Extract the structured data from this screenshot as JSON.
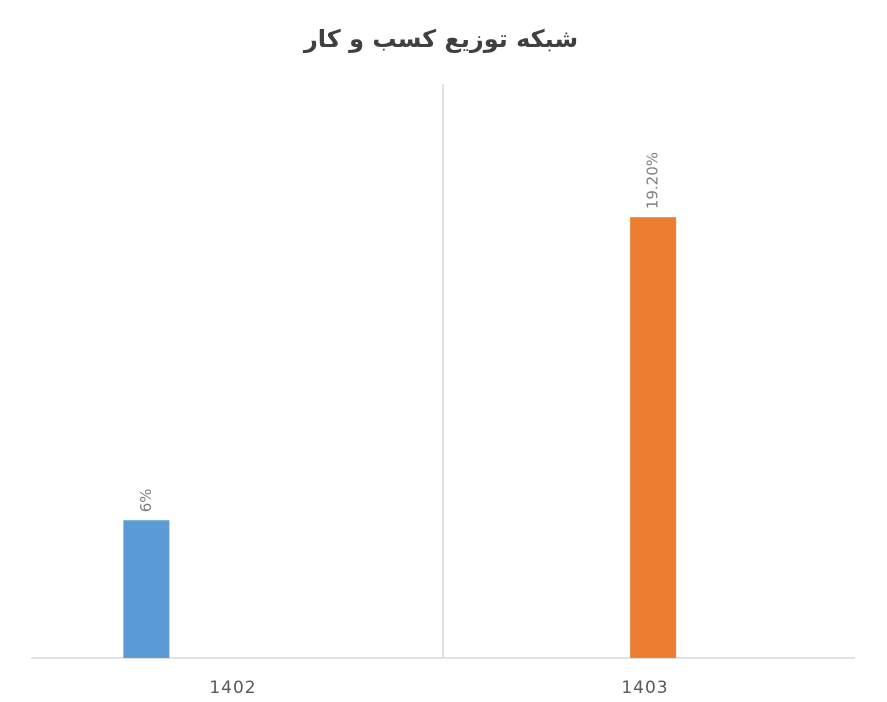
{
  "chart_data": {
    "type": "bar",
    "title": "شبکه توزیع کسب و کار",
    "categories": [
      "1402",
      "1403"
    ],
    "values": [
      6,
      19.2
    ],
    "value_labels": [
      "6%",
      "19.20%"
    ],
    "colors": [
      "#5b9bd5",
      "#ed7d31"
    ],
    "ylim": [
      0,
      25
    ]
  }
}
